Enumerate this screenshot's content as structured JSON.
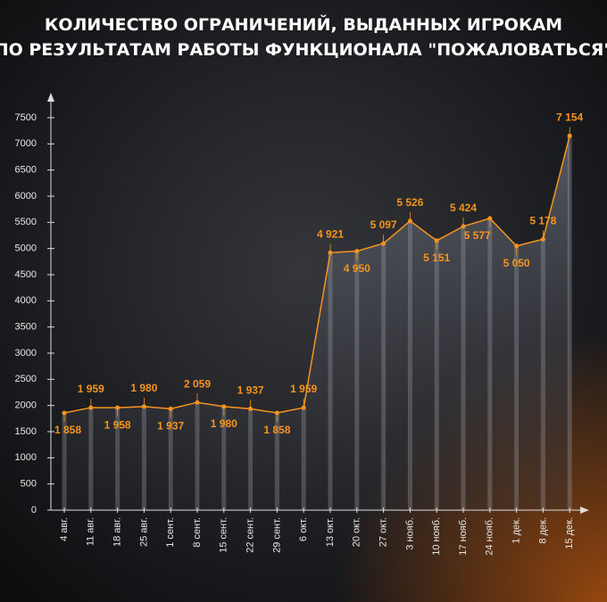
{
  "chart_data": {
    "type": "line",
    "title": [
      "КОЛИЧЕСТВО ОГРАНИЧЕНИЙ, ВЫДАННЫХ ИГРОКАМ",
      "ПО РЕЗУЛЬТАТАМ РАБОТЫ ФУНКЦИОНАЛА \"ПОЖАЛОВАТЬСЯ\""
    ],
    "categories": [
      "4 авг.",
      "11 авг.",
      "18 авг.",
      "25 авг.",
      "1 сент.",
      "8 сент.",
      "15 сент.",
      "22 сент.",
      "29 сент.",
      "6 окт.",
      "13 окт.",
      "20 окт.",
      "27 окт.",
      "3 нояб.",
      "10 нояб.",
      "17 нояб.",
      "24 нояб.",
      "1 дек.",
      "8 дек.",
      "15 дек."
    ],
    "values": [
      1858,
      1959,
      1958,
      1980,
      1937,
      2059,
      1980,
      1937,
      1858,
      1959,
      4921,
      4950,
      5097,
      5526,
      5151,
      5424,
      5577,
      5050,
      5178,
      7154
    ],
    "value_labels": [
      "1 858",
      "1 959",
      "1 958",
      "1 980",
      "1 937",
      "2 059",
      "1 980",
      "1 937",
      "1 858",
      "1 959",
      "4 921",
      "4 950",
      "5 097",
      "5 526",
      "5 151",
      "5 424",
      "5 577",
      "5 050",
      "5 178",
      "7 154"
    ],
    "color": "#f7941d",
    "ylim": [
      0,
      7500
    ],
    "yticks": [
      0,
      500,
      1000,
      1500,
      2000,
      2500,
      3000,
      3500,
      4000,
      4500,
      5000,
      5500,
      6000,
      6500,
      7000,
      7500
    ]
  }
}
